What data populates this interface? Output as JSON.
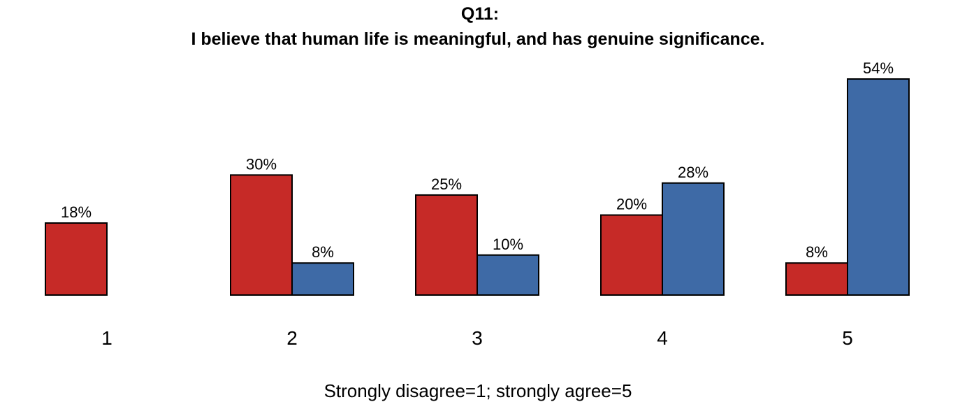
{
  "chart_data": {
    "type": "bar",
    "title": "Q11:",
    "subtitle": "I believe that human life is meaningful,  and has genuine significance.",
    "xlabel": "Strongly disagree=1; strongly agree=5",
    "ylabel": "",
    "categories": [
      "1",
      "2",
      "3",
      "4",
      "5"
    ],
    "series": [
      {
        "color": "#C62A27",
        "values": [
          18,
          30,
          25,
          20,
          8
        ],
        "labels": [
          "18%",
          "30%",
          "25%",
          "20%",
          "8%"
        ]
      },
      {
        "color": "#3E6AA6",
        "values": [
          null,
          8,
          10,
          28,
          54
        ],
        "labels": [
          "",
          "8%",
          "10%",
          "28%",
          "54%"
        ]
      }
    ],
    "ylim": [
      0,
      54
    ],
    "grid": false,
    "legend": "none",
    "axes_visible": false
  }
}
